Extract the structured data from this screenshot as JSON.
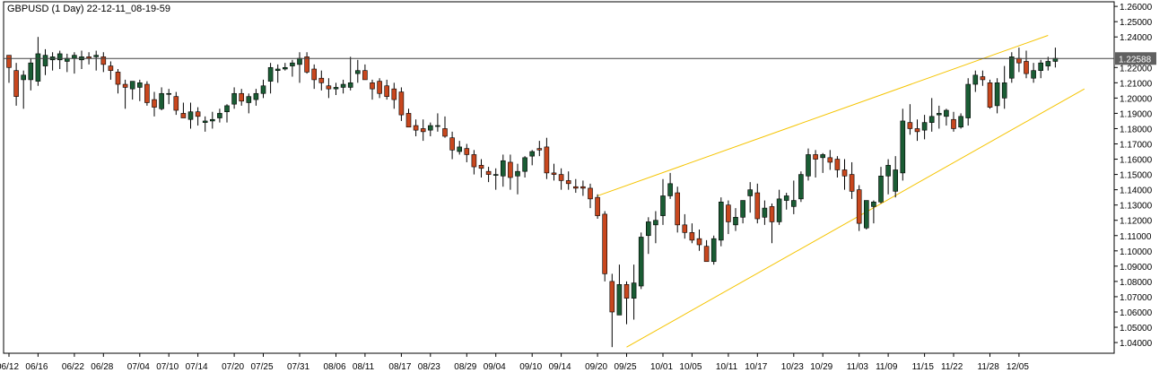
{
  "chart_data": {
    "type": "candlestick",
    "title": "GBPUSD (1 Day) 22-12-11_08-19-59",
    "symbol": "GBPUSD",
    "timeframe": "1 Day",
    "current_price": "1.22588",
    "current_price_value": 1.22588,
    "ylim": [
      1.033,
      1.263
    ],
    "y_ticks": [
      1.04,
      1.05,
      1.06,
      1.07,
      1.08,
      1.09,
      1.1,
      1.11,
      1.12,
      1.13,
      1.14,
      1.15,
      1.16,
      1.17,
      1.18,
      1.19,
      1.2,
      1.21,
      1.22,
      1.23,
      1.24,
      1.25,
      1.26
    ],
    "y_tick_labels": [
      "1.04000",
      "1.05000",
      "1.06000",
      "1.07000",
      "1.08000",
      "1.09000",
      "1.10000",
      "1.11000",
      "1.12000",
      "1.13000",
      "1.14000",
      "1.15000",
      "1.16000",
      "1.17000",
      "1.18000",
      "1.19000",
      "1.20000",
      "1.21000",
      "1.22000",
      "1.23000",
      "1.24000",
      "1.25000",
      "1.26000"
    ],
    "x_labels": [
      {
        "label": "06/12",
        "bar": 0
      },
      {
        "label": "06/16",
        "bar": 4
      },
      {
        "label": "06/22",
        "bar": 9
      },
      {
        "label": "06/28",
        "bar": 13
      },
      {
        "label": "07/04",
        "bar": 18
      },
      {
        "label": "07/10",
        "bar": 22
      },
      {
        "label": "07/14",
        "bar": 26
      },
      {
        "label": "07/20",
        "bar": 31
      },
      {
        "label": "07/25",
        "bar": 35
      },
      {
        "label": "07/31",
        "bar": 40
      },
      {
        "label": "08/06",
        "bar": 45
      },
      {
        "label": "08/11",
        "bar": 49
      },
      {
        "label": "08/17",
        "bar": 54
      },
      {
        "label": "08/23",
        "bar": 58
      },
      {
        "label": "08/29",
        "bar": 63
      },
      {
        "label": "09/04",
        "bar": 67
      },
      {
        "label": "09/10",
        "bar": 72
      },
      {
        "label": "09/14",
        "bar": 76
      },
      {
        "label": "09/20",
        "bar": 81
      },
      {
        "label": "09/25",
        "bar": 85
      },
      {
        "label": "10/01",
        "bar": 90
      },
      {
        "label": "10/05",
        "bar": 94
      },
      {
        "label": "10/11",
        "bar": 99
      },
      {
        "label": "10/17",
        "bar": 103
      },
      {
        "label": "10/23",
        "bar": 108
      },
      {
        "label": "10/29",
        "bar": 112
      },
      {
        "label": "11/03",
        "bar": 117
      },
      {
        "label": "11/09",
        "bar": 121
      },
      {
        "label": "11/15",
        "bar": 126
      },
      {
        "label": "11/22",
        "bar": 130
      },
      {
        "label": "11/28",
        "bar": 135
      },
      {
        "label": "12/05",
        "bar": 139
      }
    ],
    "bars": [
      [
        1.228,
        1.228,
        1.21,
        1.22
      ],
      [
        1.218,
        1.223,
        1.195,
        1.201
      ],
      [
        1.212,
        1.218,
        1.193,
        1.215
      ],
      [
        1.212,
        1.226,
        1.205,
        1.223
      ],
      [
        1.211,
        1.24,
        1.208,
        1.229
      ],
      [
        1.221,
        1.232,
        1.215,
        1.228
      ],
      [
        1.225,
        1.23,
        1.218,
        1.227
      ],
      [
        1.225,
        1.231,
        1.219,
        1.229
      ],
      [
        1.224,
        1.229,
        1.217,
        1.226
      ],
      [
        1.226,
        1.23,
        1.216,
        1.228
      ],
      [
        1.225,
        1.231,
        1.219,
        1.227
      ],
      [
        1.227,
        1.23,
        1.222,
        1.226
      ],
      [
        1.227,
        1.231,
        1.218,
        1.228
      ],
      [
        1.227,
        1.23,
        1.217,
        1.222
      ],
      [
        1.221,
        1.224,
        1.212,
        1.218
      ],
      [
        1.217,
        1.219,
        1.203,
        1.209
      ],
      [
        1.209,
        1.212,
        1.193,
        1.207
      ],
      [
        1.206,
        1.21,
        1.199,
        1.211
      ],
      [
        1.207,
        1.212,
        1.198,
        1.21
      ],
      [
        1.209,
        1.211,
        1.195,
        1.197
      ],
      [
        1.199,
        1.204,
        1.188,
        1.194
      ],
      [
        1.193,
        1.207,
        1.192,
        1.203
      ],
      [
        1.203,
        1.206,
        1.196,
        1.203
      ],
      [
        1.201,
        1.204,
        1.189,
        1.192
      ],
      [
        1.19,
        1.197,
        1.187,
        1.187
      ],
      [
        1.186,
        1.197,
        1.18,
        1.191
      ],
      [
        1.191,
        1.194,
        1.182,
        1.188
      ],
      [
        1.184,
        1.188,
        1.178,
        1.185
      ],
      [
        1.185,
        1.191,
        1.18,
        1.186
      ],
      [
        1.187,
        1.193,
        1.184,
        1.19
      ],
      [
        1.191,
        1.196,
        1.184,
        1.195
      ],
      [
        1.196,
        1.207,
        1.193,
        1.203
      ],
      [
        1.203,
        1.206,
        1.195,
        1.198
      ],
      [
        1.197,
        1.203,
        1.19,
        1.201
      ],
      [
        1.199,
        1.206,
        1.195,
        1.203
      ],
      [
        1.203,
        1.212,
        1.2,
        1.208
      ],
      [
        1.211,
        1.223,
        1.203,
        1.22
      ],
      [
        1.218,
        1.222,
        1.21,
        1.219
      ],
      [
        1.219,
        1.223,
        1.218,
        1.22
      ],
      [
        1.221,
        1.225,
        1.214,
        1.223
      ],
      [
        1.222,
        1.23,
        1.21,
        1.226
      ],
      [
        1.227,
        1.23,
        1.216,
        1.217
      ],
      [
        1.219,
        1.222,
        1.206,
        1.212
      ],
      [
        1.213,
        1.218,
        1.205,
        1.21
      ],
      [
        1.208,
        1.213,
        1.2,
        1.206
      ],
      [
        1.206,
        1.21,
        1.202,
        1.207
      ],
      [
        1.207,
        1.212,
        1.203,
        1.209
      ],
      [
        1.207,
        1.227,
        1.205,
        1.21
      ],
      [
        1.216,
        1.225,
        1.21,
        1.218
      ],
      [
        1.218,
        1.222,
        1.212,
        1.212
      ],
      [
        1.21,
        1.212,
        1.199,
        1.206
      ],
      [
        1.211,
        1.213,
        1.2,
        1.203
      ],
      [
        1.208,
        1.212,
        1.199,
        1.201
      ],
      [
        1.206,
        1.21,
        1.193,
        1.199
      ],
      [
        1.204,
        1.207,
        1.185,
        1.189
      ],
      [
        1.19,
        1.193,
        1.181,
        1.181
      ],
      [
        1.182,
        1.186,
        1.175,
        1.179
      ],
      [
        1.18,
        1.186,
        1.172,
        1.178
      ],
      [
        1.179,
        1.184,
        1.175,
        1.182
      ],
      [
        1.182,
        1.19,
        1.178,
        1.182
      ],
      [
        1.18,
        1.188,
        1.174,
        1.175
      ],
      [
        1.174,
        1.178,
        1.16,
        1.166
      ],
      [
        1.165,
        1.172,
        1.163,
        1.168
      ],
      [
        1.167,
        1.17,
        1.158,
        1.163
      ],
      [
        1.163,
        1.166,
        1.15,
        1.155
      ],
      [
        1.156,
        1.16,
        1.148,
        1.154
      ],
      [
        1.152,
        1.155,
        1.145,
        1.15
      ],
      [
        1.15,
        1.154,
        1.14,
        1.15
      ],
      [
        1.149,
        1.163,
        1.142,
        1.159
      ],
      [
        1.158,
        1.163,
        1.14,
        1.148
      ],
      [
        1.149,
        1.157,
        1.137,
        1.152
      ],
      [
        1.152,
        1.162,
        1.148,
        1.161
      ],
      [
        1.162,
        1.166,
        1.156,
        1.165
      ],
      [
        1.167,
        1.172,
        1.162,
        1.166
      ],
      [
        1.168,
        1.174,
        1.147,
        1.151
      ],
      [
        1.151,
        1.157,
        1.146,
        1.15
      ],
      [
        1.15,
        1.154,
        1.14,
        1.146
      ],
      [
        1.146,
        1.152,
        1.14,
        1.144
      ],
      [
        1.142,
        1.147,
        1.138,
        1.141
      ],
      [
        1.142,
        1.146,
        1.136,
        1.141
      ],
      [
        1.141,
        1.144,
        1.128,
        1.134
      ],
      [
        1.135,
        1.137,
        1.121,
        1.123
      ],
      [
        1.124,
        1.126,
        1.08,
        1.085
      ],
      [
        1.08,
        1.085,
        1.037,
        1.06
      ],
      [
        1.058,
        1.091,
        1.058,
        1.078
      ],
      [
        1.078,
        1.08,
        1.052,
        1.069
      ],
      [
        1.069,
        1.091,
        1.055,
        1.079
      ],
      [
        1.077,
        1.112,
        1.075,
        1.109
      ],
      [
        1.11,
        1.122,
        1.098,
        1.119
      ],
      [
        1.117,
        1.126,
        1.105,
        1.12
      ],
      [
        1.123,
        1.147,
        1.117,
        1.136
      ],
      [
        1.136,
        1.151,
        1.134,
        1.144
      ],
      [
        1.138,
        1.142,
        1.112,
        1.117
      ],
      [
        1.117,
        1.124,
        1.108,
        1.112
      ],
      [
        1.112,
        1.118,
        1.105,
        1.107
      ],
      [
        1.108,
        1.114,
        1.1,
        1.104
      ],
      [
        1.103,
        1.107,
        1.094,
        1.093
      ],
      [
        1.093,
        1.11,
        1.091,
        1.108
      ],
      [
        1.107,
        1.135,
        1.103,
        1.132
      ],
      [
        1.13,
        1.133,
        1.111,
        1.119
      ],
      [
        1.117,
        1.128,
        1.113,
        1.122
      ],
      [
        1.122,
        1.133,
        1.118,
        1.133
      ],
      [
        1.136,
        1.145,
        1.125,
        1.14
      ],
      [
        1.138,
        1.144,
        1.118,
        1.121
      ],
      [
        1.122,
        1.133,
        1.117,
        1.128
      ],
      [
        1.129,
        1.131,
        1.105,
        1.119
      ],
      [
        1.119,
        1.14,
        1.117,
        1.134
      ],
      [
        1.133,
        1.138,
        1.127,
        1.136
      ],
      [
        1.129,
        1.146,
        1.124,
        1.133
      ],
      [
        1.134,
        1.152,
        1.132,
        1.15
      ],
      [
        1.149,
        1.167,
        1.146,
        1.163
      ],
      [
        1.163,
        1.166,
        1.148,
        1.16
      ],
      [
        1.161,
        1.164,
        1.151,
        1.163
      ],
      [
        1.161,
        1.166,
        1.153,
        1.158
      ],
      [
        1.16,
        1.162,
        1.148,
        1.153
      ],
      [
        1.153,
        1.16,
        1.14,
        1.149
      ],
      [
        1.15,
        1.158,
        1.134,
        1.139
      ],
      [
        1.14,
        1.143,
        1.113,
        1.118
      ],
      [
        1.115,
        1.128,
        1.114,
        1.133
      ],
      [
        1.129,
        1.133,
        1.118,
        1.132
      ],
      [
        1.132,
        1.155,
        1.131,
        1.149
      ],
      [
        1.149,
        1.16,
        1.137,
        1.156
      ],
      [
        1.139,
        1.162,
        1.135,
        1.153
      ],
      [
        1.151,
        1.193,
        1.146,
        1.185
      ],
      [
        1.184,
        1.196,
        1.176,
        1.18
      ],
      [
        1.18,
        1.186,
        1.172,
        1.178
      ],
      [
        1.179,
        1.189,
        1.173,
        1.184
      ],
      [
        1.184,
        1.2,
        1.178,
        1.188
      ],
      [
        1.189,
        1.195,
        1.18,
        1.19
      ],
      [
        1.188,
        1.193,
        1.182,
        1.192
      ],
      [
        1.186,
        1.191,
        1.178,
        1.18
      ],
      [
        1.181,
        1.19,
        1.18,
        1.188
      ],
      [
        1.187,
        1.213,
        1.182,
        1.209
      ],
      [
        1.209,
        1.218,
        1.204,
        1.215
      ],
      [
        1.214,
        1.218,
        1.208,
        1.212
      ],
      [
        1.21,
        1.212,
        1.193,
        1.194
      ],
      [
        1.195,
        1.213,
        1.19,
        1.21
      ],
      [
        1.2,
        1.221,
        1.193,
        1.21
      ],
      [
        1.213,
        1.23,
        1.21,
        1.227
      ],
      [
        1.226,
        1.233,
        1.217,
        1.223
      ],
      [
        1.224,
        1.231,
        1.213,
        1.216
      ],
      [
        1.213,
        1.223,
        1.21,
        1.218
      ],
      [
        1.218,
        1.225,
        1.213,
        1.223
      ],
      [
        1.221,
        1.227,
        1.218,
        1.224
      ],
      [
        1.224,
        1.233,
        1.22,
        1.226
      ]
    ],
    "horizontal_line": 1.22588,
    "trendlines": [
      {
        "from": {
          "bar": 81,
          "price": 1.136
        },
        "to": {
          "bar": 143,
          "price": 1.241
        }
      },
      {
        "from": {
          "bar": 85,
          "price": 1.037
        },
        "to": {
          "bar": 148,
          "price": 1.206
        }
      }
    ],
    "grid": false,
    "colors": {
      "bull": "#1a5c34",
      "bear": "#c8471e",
      "wick": "#000000",
      "trendline": "#f5c400",
      "price_line": "#404040",
      "price_tag_bg": "#606060",
      "frame": "#000000",
      "background": "#ffffff"
    }
  }
}
